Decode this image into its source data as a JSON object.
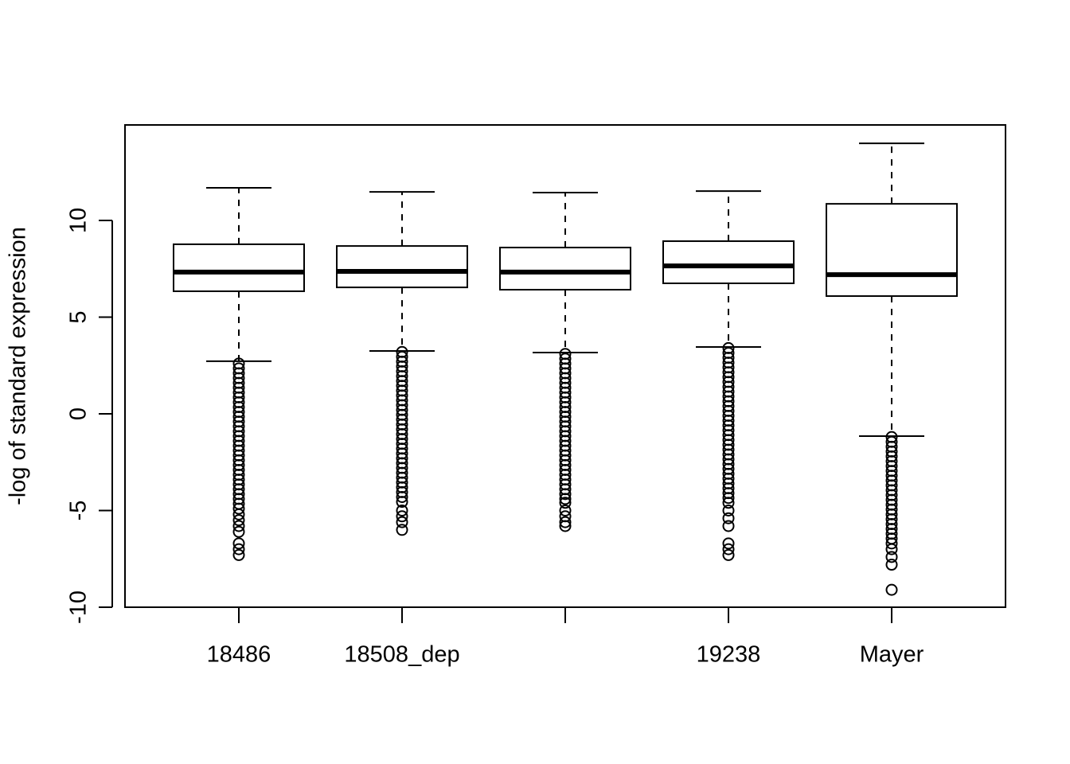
{
  "chart_data": {
    "type": "boxplot",
    "ylabel": "-log of standard expression",
    "categories": [
      "18486",
      "18508_dep",
      null,
      "19238",
      "Mayer"
    ],
    "ylim": [
      -10,
      14.94
    ],
    "yticks": [
      -10,
      -5,
      0,
      5,
      10
    ],
    "boxes": [
      {
        "whisker_low": 2.72,
        "q1": 6.34,
        "median": 7.33,
        "q3": 8.77,
        "whisker_high": 11.69,
        "outliers": [
          2.6,
          2.35,
          2.1,
          1.85,
          1.6,
          1.35,
          1.1,
          0.85,
          0.6,
          0.35,
          0.1,
          -0.15,
          -0.4,
          -0.65,
          -0.9,
          -1.15,
          -1.4,
          -1.65,
          -1.9,
          -2.15,
          -2.4,
          -2.65,
          -2.9,
          -3.15,
          -3.4,
          -3.65,
          -3.9,
          -4.15,
          -4.4,
          -4.65,
          -4.9,
          -5.2,
          -5.5,
          -5.8,
          -6.1,
          -6.7,
          -7.0,
          -7.3
        ]
      },
      {
        "whisker_low": 3.25,
        "q1": 6.54,
        "median": 7.37,
        "q3": 8.68,
        "whisker_high": 11.48,
        "outliers": [
          3.2,
          2.95,
          2.7,
          2.45,
          2.2,
          1.95,
          1.7,
          1.45,
          1.2,
          0.95,
          0.7,
          0.45,
          0.2,
          -0.05,
          -0.3,
          -0.55,
          -0.8,
          -1.05,
          -1.3,
          -1.55,
          -1.8,
          -2.05,
          -2.3,
          -2.55,
          -2.8,
          -3.05,
          -3.3,
          -3.55,
          -3.8,
          -4.05,
          -4.3,
          -4.55,
          -5.0,
          -5.3,
          -5.6,
          -6.0
        ]
      },
      {
        "whisker_low": 3.17,
        "q1": 6.42,
        "median": 7.33,
        "q3": 8.6,
        "whisker_high": 11.44,
        "outliers": [
          3.1,
          2.85,
          2.6,
          2.35,
          2.1,
          1.85,
          1.6,
          1.35,
          1.1,
          0.85,
          0.6,
          0.35,
          0.1,
          -0.15,
          -0.4,
          -0.65,
          -0.9,
          -1.15,
          -1.4,
          -1.65,
          -1.9,
          -2.15,
          -2.4,
          -2.65,
          -2.9,
          -3.15,
          -3.4,
          -3.65,
          -3.9,
          -4.15,
          -4.4,
          -4.6,
          -5.0,
          -5.3,
          -5.6,
          -5.8
        ]
      },
      {
        "whisker_low": 3.46,
        "q1": 6.75,
        "median": 7.65,
        "q3": 8.93,
        "whisker_high": 11.52,
        "outliers": [
          3.4,
          3.15,
          2.9,
          2.65,
          2.4,
          2.15,
          1.9,
          1.65,
          1.4,
          1.15,
          0.9,
          0.65,
          0.4,
          0.15,
          -0.1,
          -0.35,
          -0.6,
          -0.85,
          -1.1,
          -1.35,
          -1.6,
          -1.85,
          -2.1,
          -2.35,
          -2.6,
          -2.85,
          -3.1,
          -3.35,
          -3.6,
          -3.85,
          -4.1,
          -4.35,
          -4.6,
          -5.0,
          -5.4,
          -5.8,
          -6.7,
          -7.0,
          -7.3
        ]
      },
      {
        "whisker_low": -1.15,
        "q1": 6.09,
        "median": 7.2,
        "q3": 10.86,
        "whisker_high": 13.99,
        "outliers": [
          -1.2,
          -1.45,
          -1.7,
          -1.95,
          -2.2,
          -2.45,
          -2.7,
          -2.95,
          -3.2,
          -3.45,
          -3.7,
          -3.95,
          -4.2,
          -4.45,
          -4.7,
          -4.95,
          -5.2,
          -5.45,
          -5.7,
          -5.95,
          -6.2,
          -6.45,
          -6.7,
          -7.0,
          -7.4,
          -7.8,
          -9.1
        ]
      }
    ]
  }
}
